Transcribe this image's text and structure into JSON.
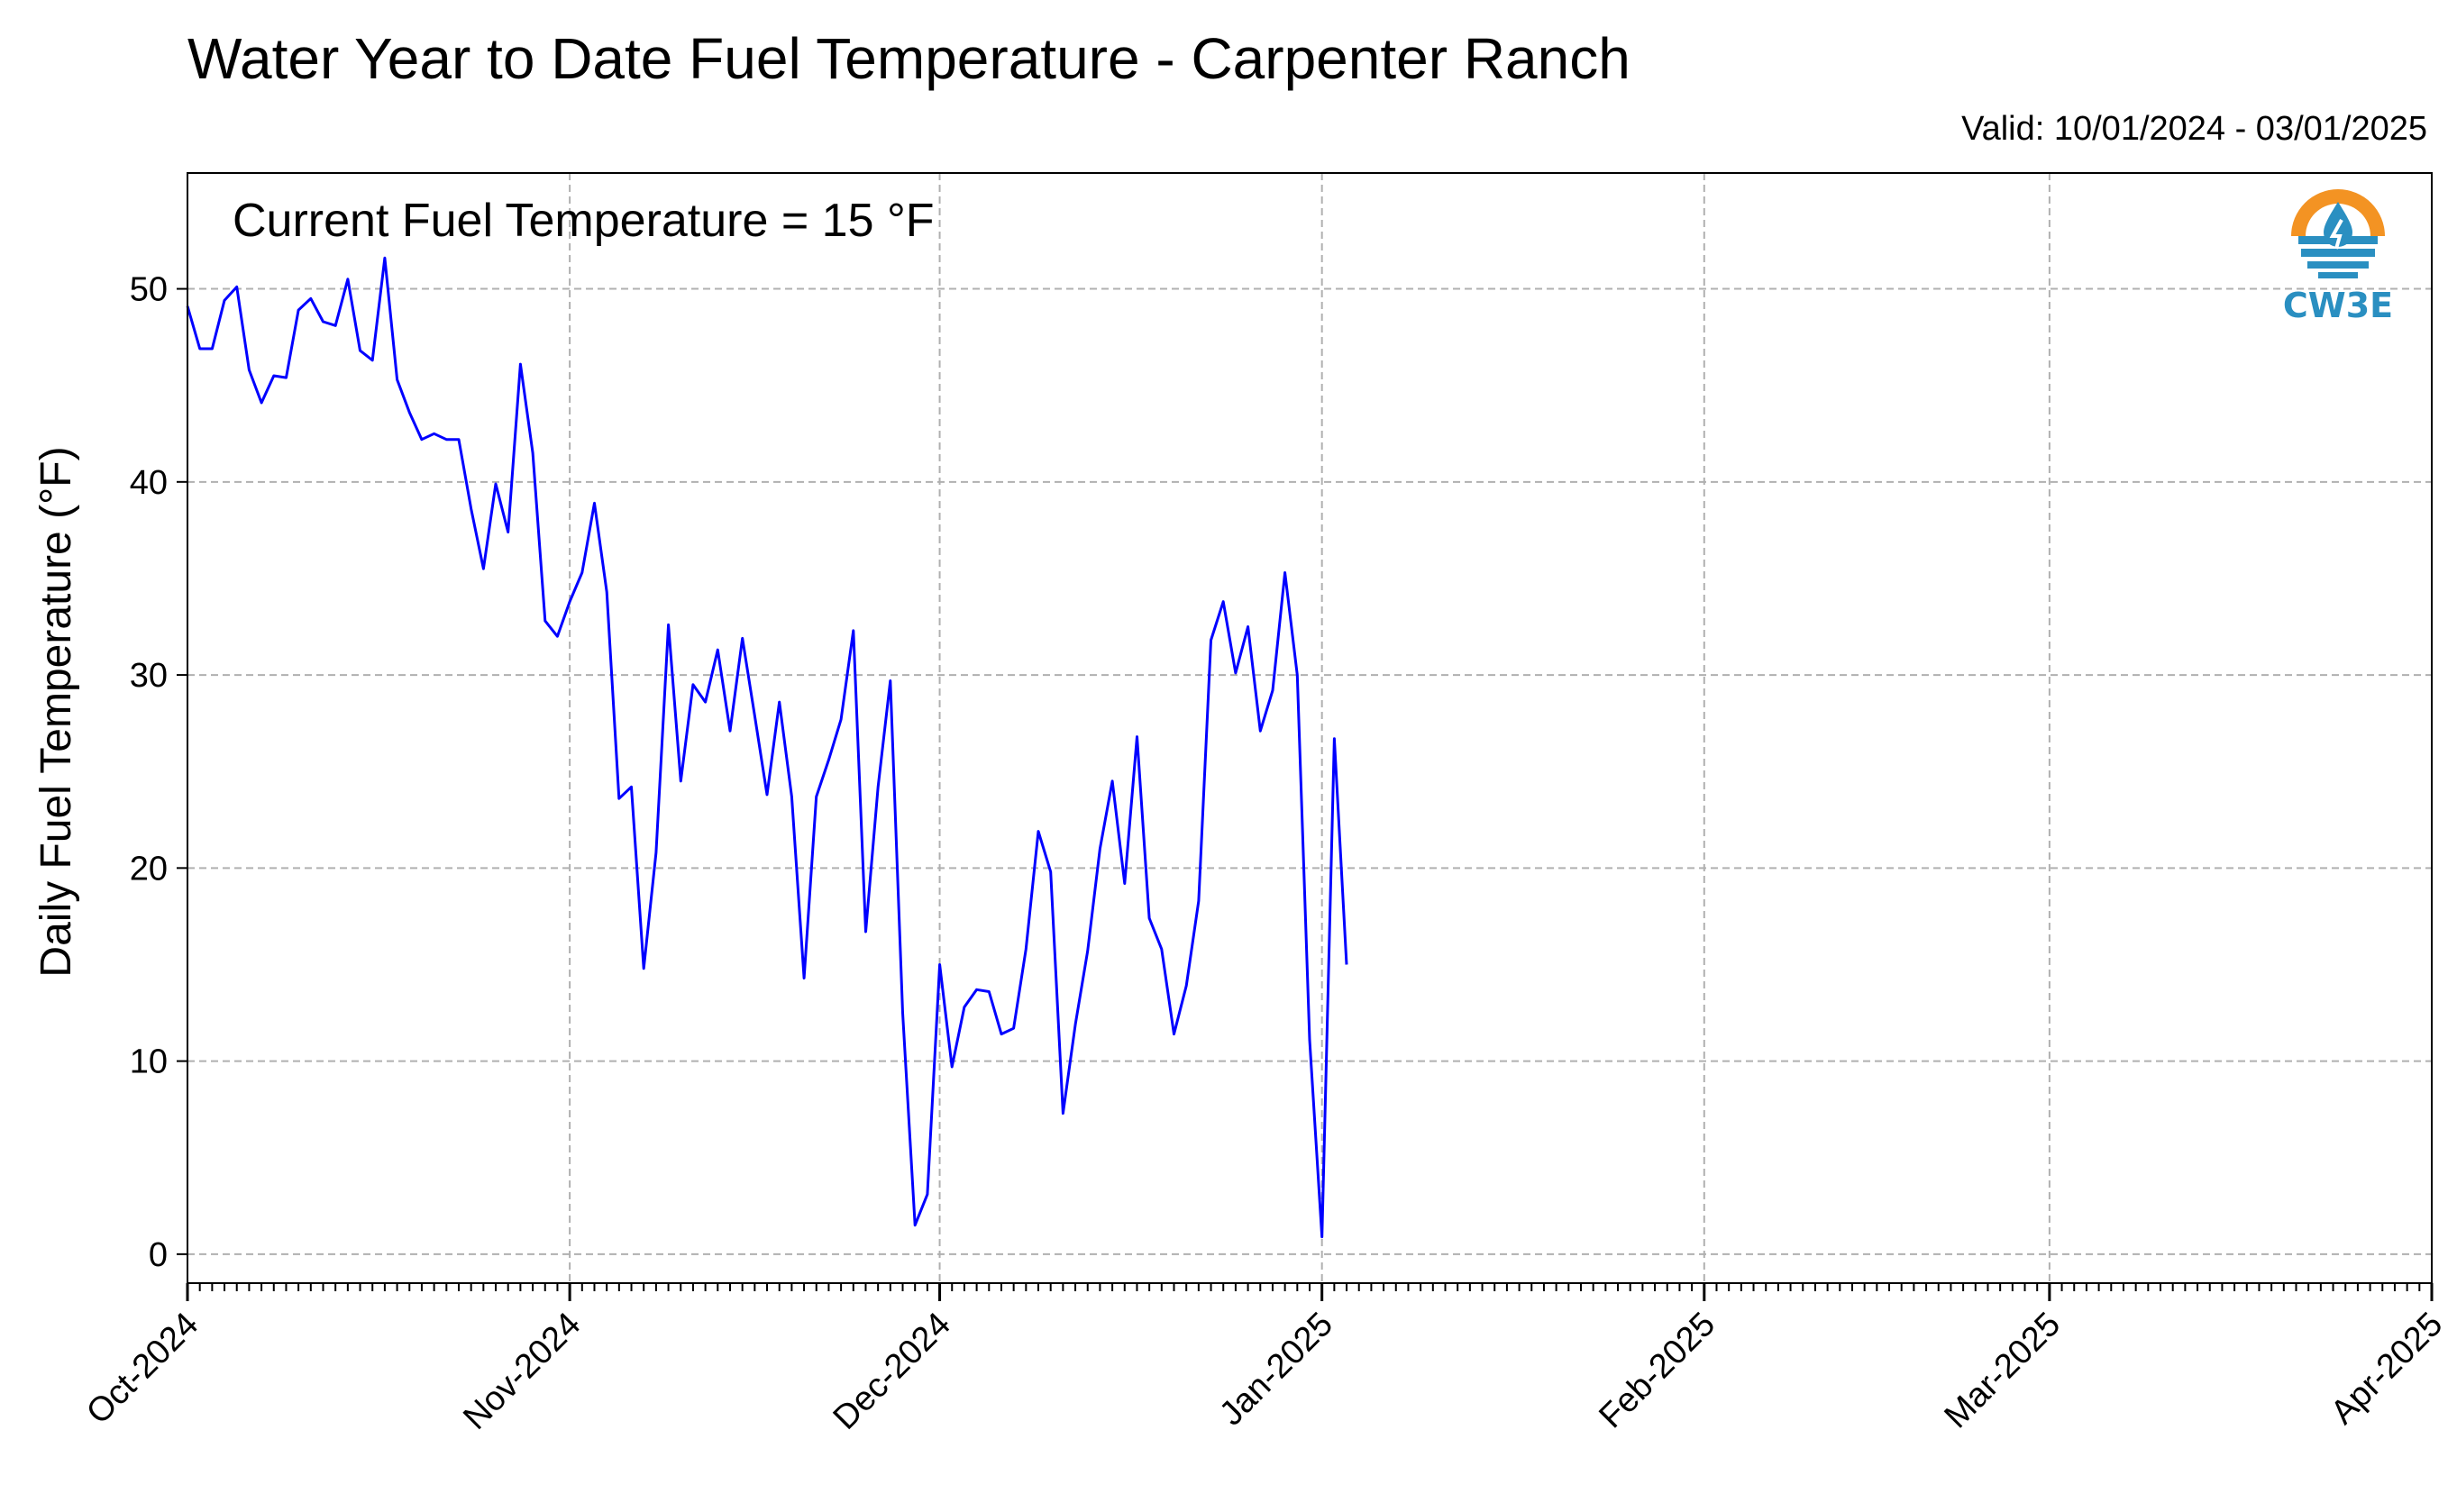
{
  "header": {
    "title": "Water Year to Date Fuel Temperature - Carpenter Ranch",
    "subtitle": "Valid: 10/01/2024 - 03/01/2025"
  },
  "annotation": "Current Fuel Temperature = 15 °F",
  "logo": {
    "text": "CW3E",
    "icon": "water-drop-logo-icon",
    "colors": {
      "orange": "#f39323",
      "blue": "#2a8fc1"
    }
  },
  "chart_data": {
    "type": "line",
    "ylabel": "Daily Fuel Temperature (°F)",
    "ylim": [
      -1.5,
      56
    ],
    "xlim": [
      "2024-10-01",
      "2025-04-01"
    ],
    "grid": true,
    "x_ticks": [
      {
        "date": "2024-10-01",
        "label": "Oct-2024"
      },
      {
        "date": "2024-11-01",
        "label": "Nov-2024"
      },
      {
        "date": "2024-12-01",
        "label": "Dec-2024"
      },
      {
        "date": "2025-01-01",
        "label": "Jan-2025"
      },
      {
        "date": "2025-02-01",
        "label": "Feb-2025"
      },
      {
        "date": "2025-03-01",
        "label": "Mar-2025"
      },
      {
        "date": "2025-04-01",
        "label": "Apr-2025"
      }
    ],
    "y_ticks": [
      0,
      10,
      20,
      30,
      40,
      50
    ],
    "series": [
      {
        "color": "#0000ff",
        "start_date": "2024-10-01",
        "step": "1 day",
        "values": [
          49.1,
          46.9,
          46.9,
          49.4,
          50.1,
          45.8,
          44.1,
          45.5,
          45.4,
          48.9,
          49.5,
          48.3,
          48.1,
          50.5,
          46.8,
          46.3,
          51.6,
          45.3,
          43.6,
          42.2,
          42.5,
          42.2,
          42.2,
          38.6,
          35.5,
          39.9,
          37.4,
          46.1,
          41.5,
          32.8,
          32.0,
          33.8,
          35.3,
          38.9,
          34.3,
          23.6,
          24.2,
          14.8,
          20.8,
          32.6,
          24.5,
          29.5,
          28.6,
          31.3,
          27.1,
          31.9,
          27.9,
          23.8,
          28.6,
          23.7,
          14.3,
          23.7,
          25.6,
          27.7,
          32.3,
          16.7,
          24.2,
          29.7,
          12.5,
          1.5,
          3.1,
          15.0,
          9.7,
          12.8,
          13.7,
          13.6,
          11.4,
          11.7,
          15.8,
          21.9,
          19.8,
          7.3,
          11.9,
          15.7,
          21.0,
          24.5,
          19.2,
          26.8,
          17.4,
          15.8,
          11.4,
          13.9,
          18.3,
          31.8,
          33.8,
          30.1,
          32.5,
          27.1,
          29.2,
          35.3,
          30.0,
          11.1,
          0.9,
          26.7,
          15.0
        ]
      }
    ]
  }
}
